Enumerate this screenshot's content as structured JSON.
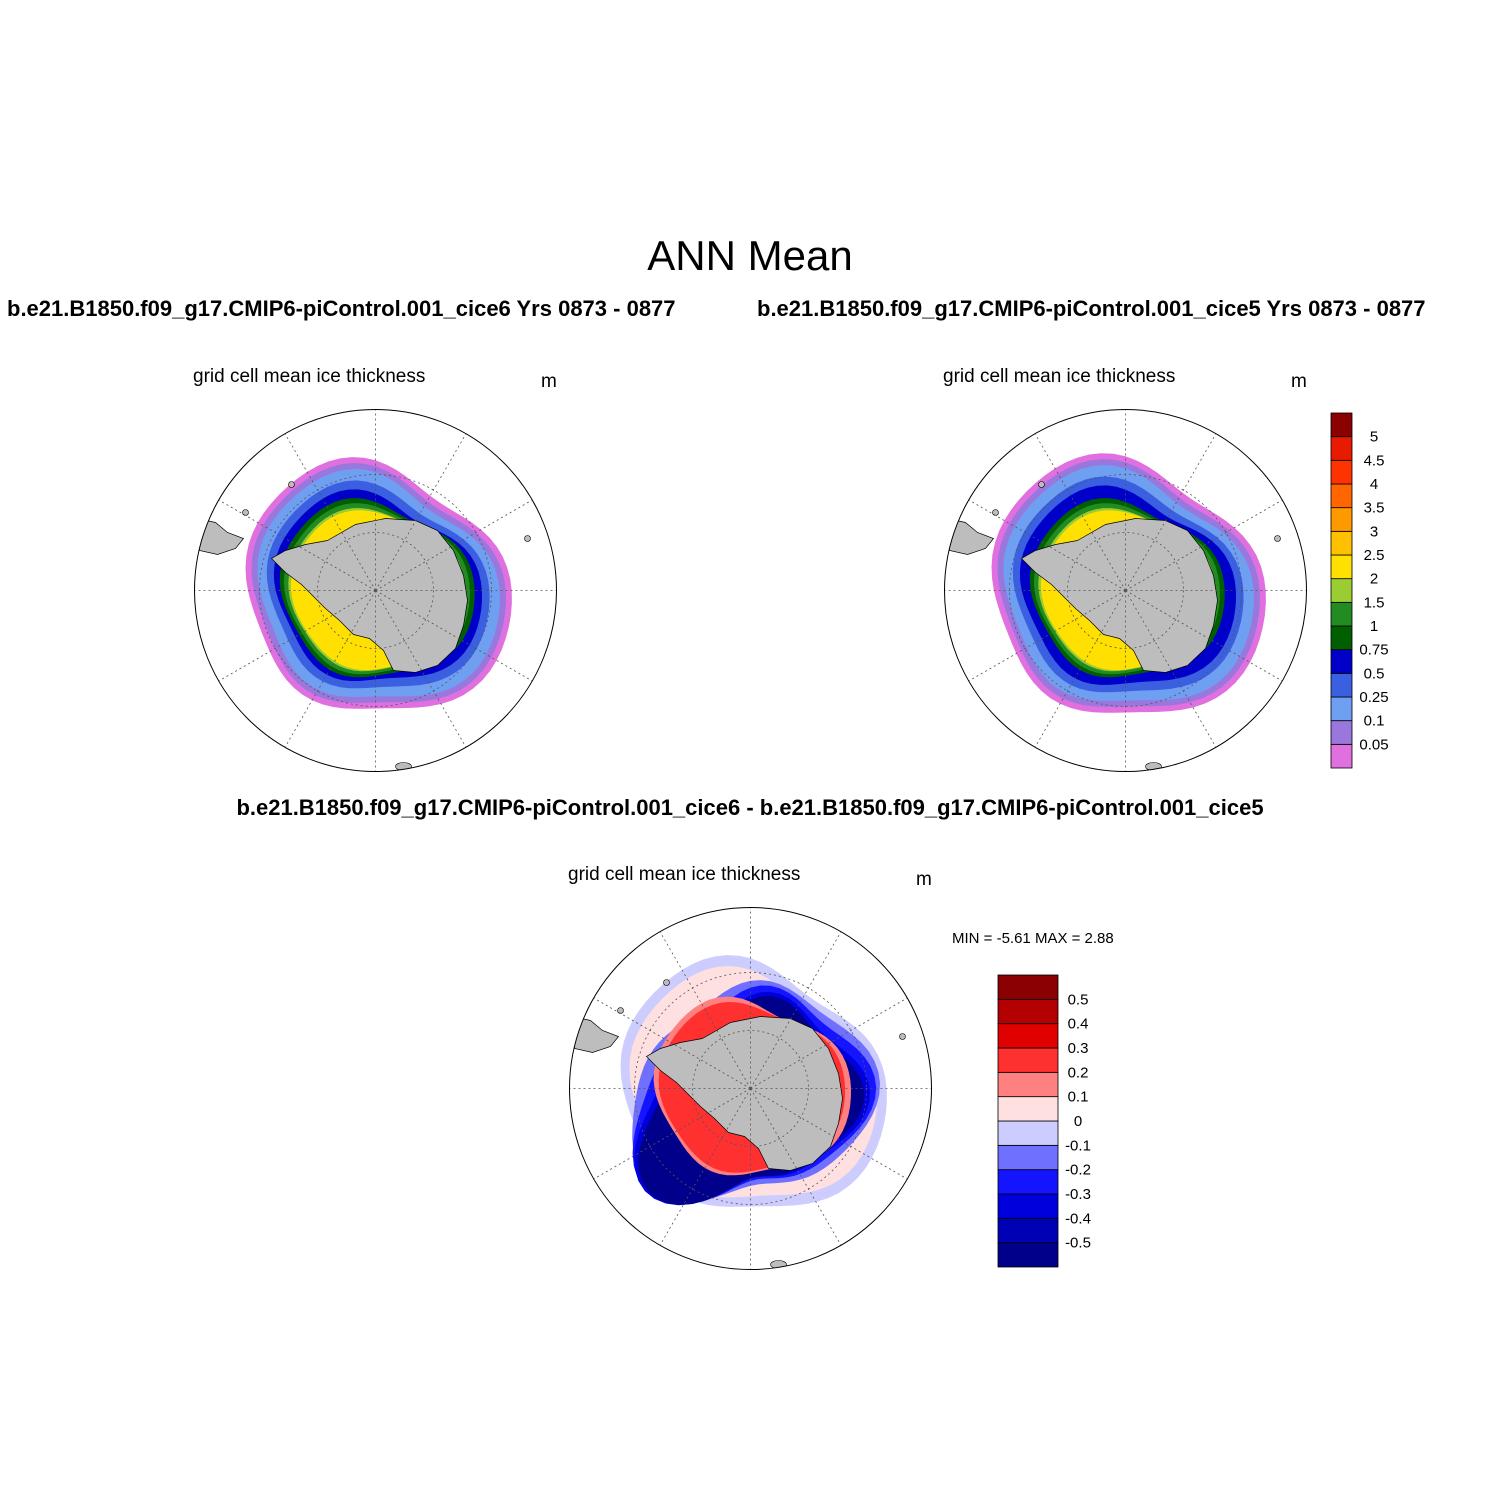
{
  "figure": {
    "title": "ANN Mean"
  },
  "panels": {
    "top_left": {
      "case_title": "b.e21.B1850.f09_g17.CMIP6-piControl.001_cice6  Yrs 0873 - 0877",
      "variable": "grid cell mean ice thickness",
      "units": "m"
    },
    "top_right": {
      "case_title": "b.e21.B1850.f09_g17.CMIP6-piControl.001_cice5  Yrs 0873 - 0877",
      "variable": "grid cell mean ice thickness",
      "units": "m"
    },
    "difference": {
      "case_title": "b.e21.B1850.f09_g17.CMIP6-piControl.001_cice6 - b.e21.B1850.f09_g17.CMIP6-piControl.001_cice5",
      "variable": "grid cell mean ice thickness",
      "units": "m",
      "minmax_text": "MIN =  -5.61 MAX =   2.88"
    }
  },
  "chart_data": [
    {
      "type": "heatmap",
      "name": "top_left",
      "projection": "south polar stereographic",
      "grid": true,
      "colorbar": {
        "labels": [
          "0.05",
          "0.1",
          "0.25",
          "0.5",
          "0.75",
          "1",
          "1.5",
          "2",
          "2.5",
          "3",
          "3.5",
          "4",
          "4.5",
          "5"
        ],
        "colors": [
          "#e070e0",
          "#9977dd",
          "#6f9ff0",
          "#3a5fe0",
          "#0000c8",
          "#006000",
          "#228b22",
          "#9acd32",
          "#ffe000",
          "#ffc000",
          "#ff9900",
          "#ff6600",
          "#ff3300",
          "#e81a00",
          "#8b0000"
        ]
      }
    },
    {
      "type": "heatmap",
      "name": "top_right",
      "projection": "south polar stereographic",
      "grid": true,
      "colorbar": {
        "labels": [
          "0.05",
          "0.1",
          "0.25",
          "0.5",
          "0.75",
          "1",
          "1.5",
          "2",
          "2.5",
          "3",
          "3.5",
          "4",
          "4.5",
          "5"
        ],
        "colors": [
          "#e070e0",
          "#9977dd",
          "#6f9ff0",
          "#3a5fe0",
          "#0000c8",
          "#006000",
          "#228b22",
          "#9acd32",
          "#ffe000",
          "#ffc000",
          "#ff9900",
          "#ff6600",
          "#ff3300",
          "#e81a00",
          "#8b0000"
        ]
      }
    },
    {
      "type": "heatmap",
      "name": "difference",
      "projection": "south polar stereographic",
      "grid": true,
      "colorbar": {
        "labels": [
          "-0.5",
          "-0.4",
          "-0.3",
          "-0.2",
          "-0.1",
          "0",
          "0.1",
          "0.2",
          "0.3",
          "0.4",
          "0.5"
        ],
        "colors": [
          "#00008b",
          "#0000b4",
          "#0000dc",
          "#1414ff",
          "#7070ff",
          "#ccccff",
          "#ffe0e0",
          "#ff8080",
          "#ff3030",
          "#e00000",
          "#b40000",
          "#8b0000"
        ]
      }
    }
  ]
}
